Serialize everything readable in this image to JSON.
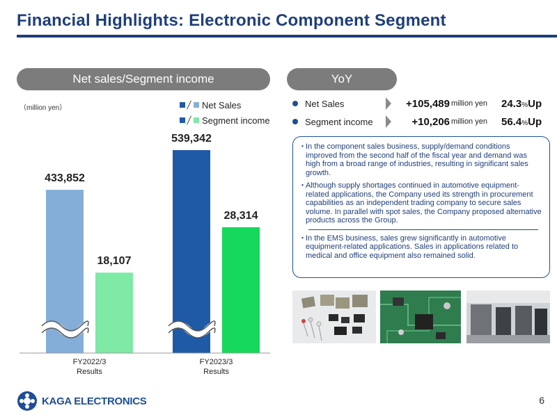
{
  "title": "Financial Highlights: Electronic Component Segment",
  "left_pill": "Net sales/Segment income",
  "right_pill": "YoY",
  "unit_note": "（million yen）",
  "legend": {
    "net_sales": "Net Sales",
    "segment_income": "Segment income"
  },
  "colors": {
    "title": "#1f3f7a",
    "fy2022_net_sales": "#84aed7",
    "fy2022_segment_income": "#7eeaa6",
    "fy2023_net_sales": "#1f5aa6",
    "fy2023_segment_income": "#16d85c"
  },
  "chart_data": {
    "type": "bar",
    "categories": [
      "FY2022/3\nResults",
      "FY2023/3\nResults"
    ],
    "series": [
      {
        "name": "Net Sales",
        "values": [
          433852,
          539342
        ]
      },
      {
        "name": "Segment income",
        "values": [
          18107,
          28314
        ]
      }
    ],
    "value_labels": {
      "net_sales": [
        "433,852",
        "539,342"
      ],
      "segment_income": [
        "18,107",
        "28,314"
      ]
    },
    "category_labels": [
      [
        "FY2022/3",
        "Results"
      ],
      [
        "FY2023/3",
        "Results"
      ]
    ],
    "broken_axis": true,
    "grid": false,
    "legend_position": "top-right"
  },
  "yoy": [
    {
      "label": "Net Sales",
      "value": "+105,489",
      "unit": "million yen",
      "pct": "24.3",
      "pct_symbol": "%",
      "pct_word": "Up"
    },
    {
      "label": "Segment income",
      "value": "+10,206",
      "unit": "million yen",
      "pct": "56.4",
      "pct_symbol": "%",
      "pct_word": "Up"
    }
  ],
  "notes": [
    {
      "bullet": "・",
      "text": "In the component sales business, supply/demand conditions improved from the second half of the fiscal year and demand was high from a broad range of industries, resulting in significant sales growth."
    },
    {
      "bullet": "・",
      "text": "Although supply shortages continued in automotive equipment-related applications, the Company used its strength in procurement capabilities as an independent trading company to secure sales volume. In parallel with spot sales, the Company proposed alternative products across the Group."
    },
    {
      "bullet": "・",
      "text": "In the EMS business, sales grew significantly in automotive equipment-related applications. Sales in applications related to medical and office equipment also remained solid."
    }
  ],
  "logo_text": "KAGA ELECTRONICS",
  "page_number": "6"
}
